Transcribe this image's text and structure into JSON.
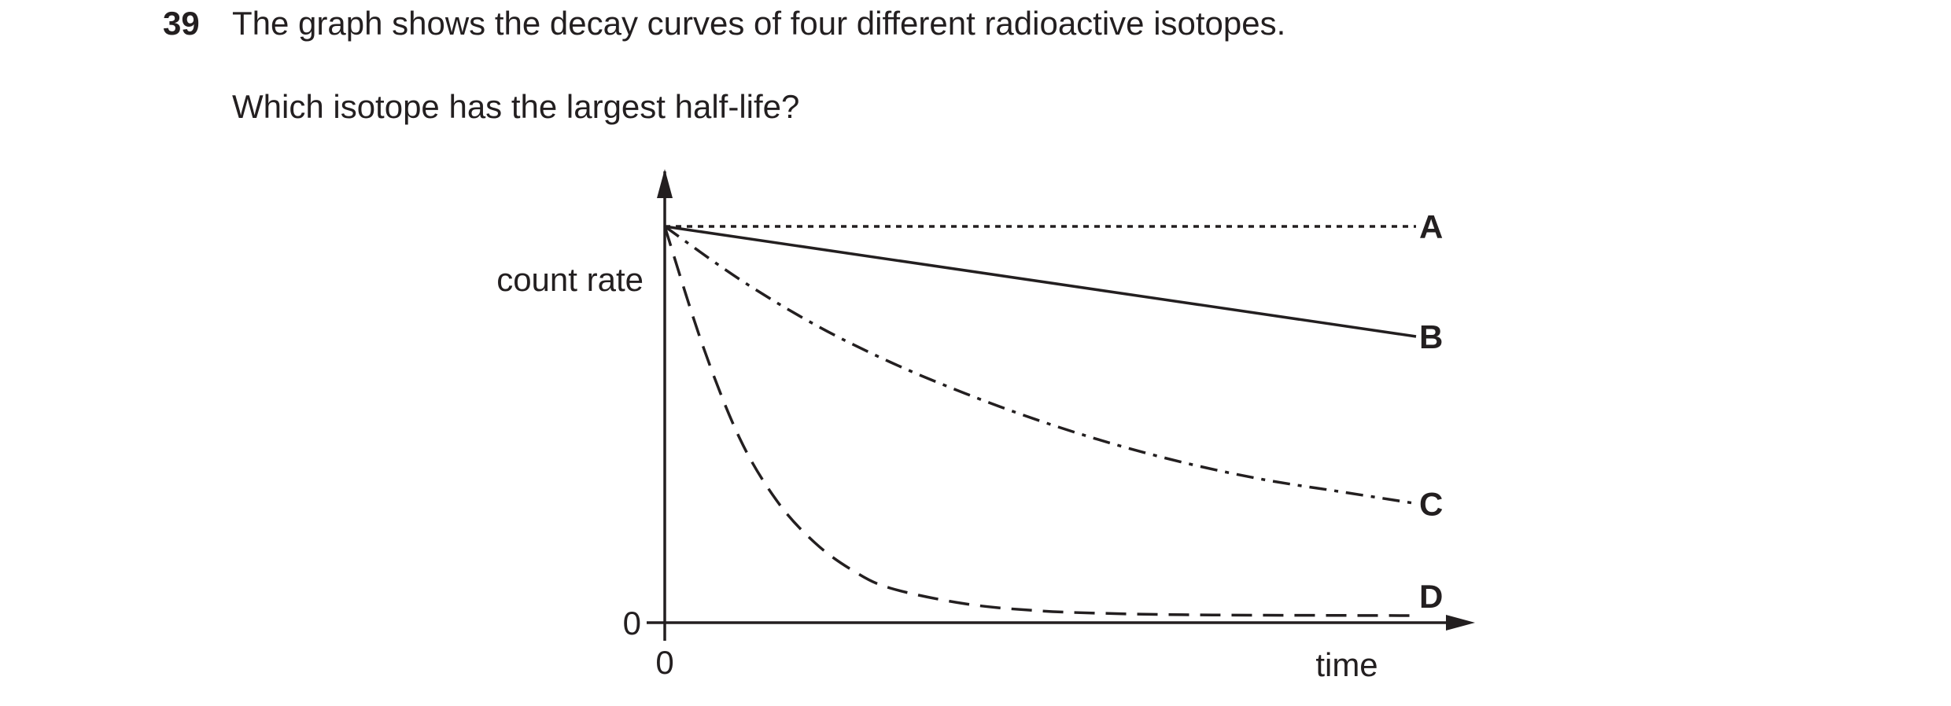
{
  "question": {
    "number": "39",
    "text": "The graph shows the decay curves of four different radioactive isotopes.",
    "prompt": "Which isotope has the largest half-life?"
  },
  "chart_data": {
    "type": "line",
    "xlabel": "time",
    "ylabel": "count rate",
    "x_origin_label": "0",
    "y_origin_label": "0",
    "xlim": [
      0,
      1.0
    ],
    "ylim": [
      0,
      1.0
    ],
    "grid": false,
    "series": [
      {
        "name": "A",
        "style": "dotted",
        "x": [
          0,
          1.0
        ],
        "y": [
          1.0,
          1.0
        ]
      },
      {
        "name": "B",
        "style": "solid",
        "x": [
          0,
          1.0
        ],
        "y": [
          1.0,
          0.72
        ]
      },
      {
        "name": "C",
        "style": "dash-dot",
        "x": [
          0,
          0.1,
          0.2,
          0.3,
          0.4,
          0.5,
          0.6,
          0.7,
          0.8,
          0.9,
          1.0
        ],
        "y": [
          1.0,
          0.865,
          0.75,
          0.655,
          0.575,
          0.505,
          0.445,
          0.395,
          0.355,
          0.325,
          0.295
        ]
      },
      {
        "name": "D",
        "style": "dashed",
        "x": [
          0,
          0.05,
          0.1,
          0.15,
          0.2,
          0.25,
          0.3,
          0.4,
          0.5,
          0.6,
          0.7,
          0.8,
          1.0
        ],
        "y": [
          1.0,
          0.7,
          0.46,
          0.3,
          0.195,
          0.125,
          0.08,
          0.04,
          0.022,
          0.015,
          0.012,
          0.011,
          0.01
        ]
      }
    ]
  }
}
